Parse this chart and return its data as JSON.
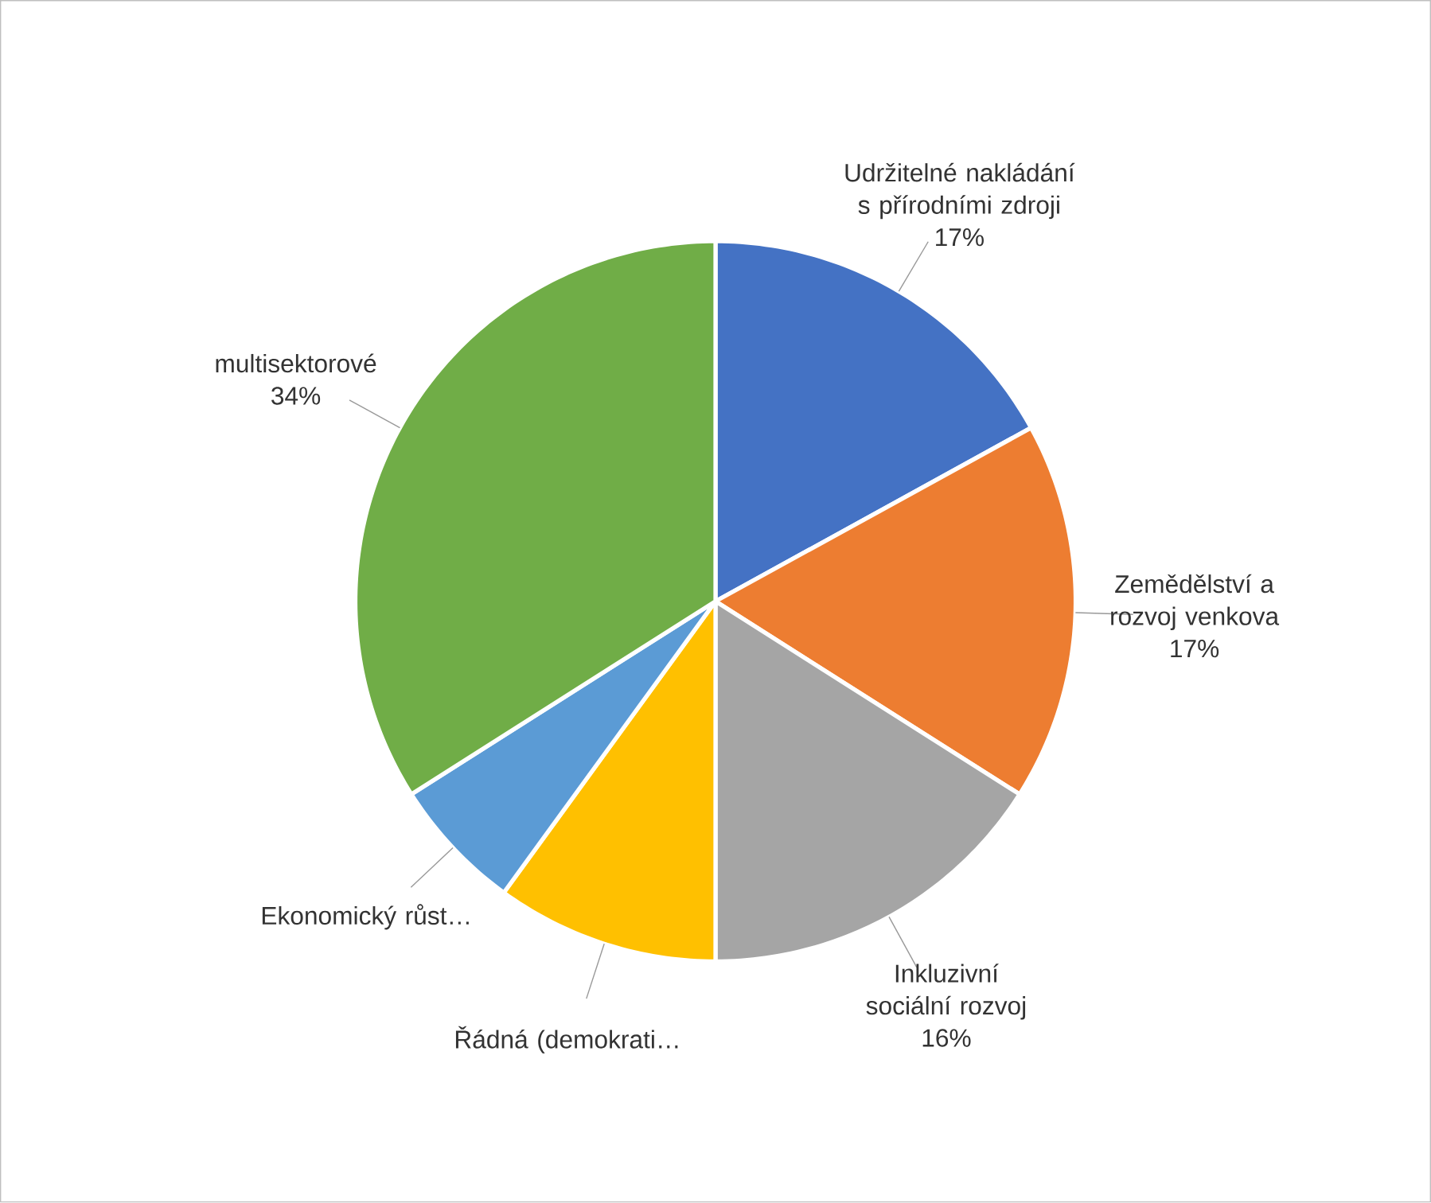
{
  "chart_data": {
    "type": "pie",
    "categories": [
      "Udržitelné nakládání s přírodními zdroji",
      "Zemědělství a rozvoj venkova",
      "Inkluzivní sociální rozvoj",
      "Řádná (demokrati…",
      "Ekonomický růst…",
      "multisektorové"
    ],
    "values": [
      17,
      17,
      16,
      10,
      6,
      34
    ],
    "value_labels": [
      "17%",
      "17%",
      "16%",
      null,
      null,
      "34%"
    ],
    "colors": [
      "#4472c4",
      "#ed7d31",
      "#a5a5a5",
      "#ffc000",
      "#5b9bd5",
      "#70ad47"
    ]
  }
}
